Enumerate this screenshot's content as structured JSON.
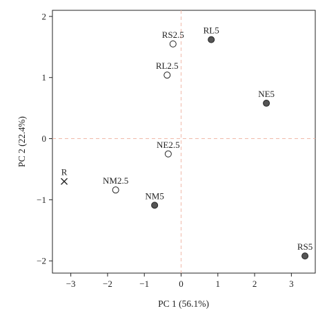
{
  "chart_data": {
    "type": "scatter",
    "xlabel": "PC 1 (56.1%)",
    "ylabel": "PC 2 (22.4%)",
    "xlim": [
      -3.5,
      3.65
    ],
    "ylim": [
      -2.2,
      2.1
    ],
    "x_ticks": [
      -3,
      -2,
      -1,
      0,
      1,
      2,
      3
    ],
    "y_ticks": [
      -2,
      -1,
      0,
      1,
      2
    ],
    "grid": false,
    "reference_lines": {
      "x": 0,
      "y": 0,
      "style": "dashed",
      "color": "#f0b8a8"
    },
    "points": [
      {
        "label": "RS2.5",
        "x": -0.22,
        "y": 1.55,
        "marker": "open-circle"
      },
      {
        "label": "RL5",
        "x": 0.82,
        "y": 1.62,
        "marker": "filled-circle"
      },
      {
        "label": "RL2.5",
        "x": -0.38,
        "y": 1.04,
        "marker": "open-circle"
      },
      {
        "label": "NE5",
        "x": 2.32,
        "y": 0.58,
        "marker": "filled-circle"
      },
      {
        "label": "NE2.5",
        "x": -0.35,
        "y": -0.25,
        "marker": "open-circle"
      },
      {
        "label": "R",
        "x": -3.18,
        "y": -0.7,
        "marker": "cross"
      },
      {
        "label": "NM2.5",
        "x": -1.78,
        "y": -0.84,
        "marker": "open-circle"
      },
      {
        "label": "NM5",
        "x": -0.72,
        "y": -1.09,
        "marker": "filled-circle"
      },
      {
        "label": "RS5",
        "x": 3.37,
        "y": -1.92,
        "marker": "filled-circle"
      }
    ],
    "colors": {
      "filled_marker": "#555555",
      "open_marker": "#ffffff",
      "marker_edge": "#222222",
      "axis": "#222222"
    }
  }
}
